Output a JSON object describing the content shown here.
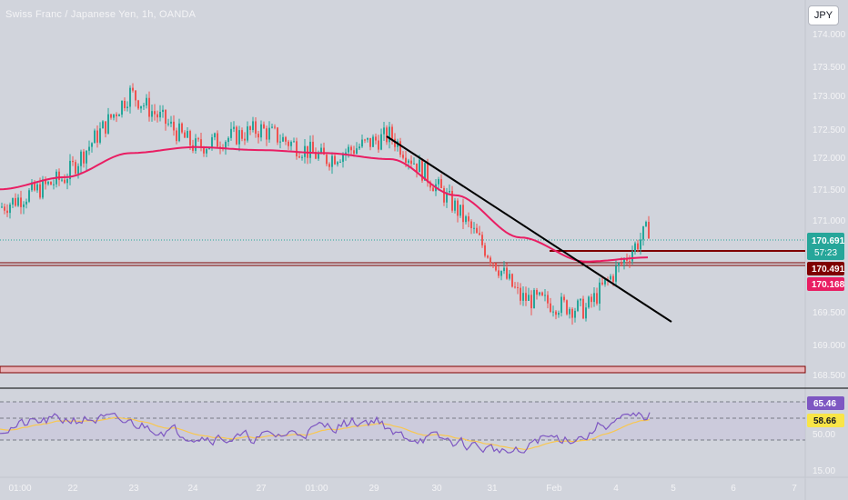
{
  "header": {
    "symbol_title": "Swiss Franc / Japanese Yen, 1h, OANDA",
    "currency_button": "JPY"
  },
  "colors": {
    "background": "#d1d4dc",
    "bull": "#26a69a",
    "bear": "#ef5350",
    "ma": "#e91e63",
    "trendline": "#000000",
    "resistance": "#7f0000",
    "support_zone": "#e8b4b8",
    "rsi": "#7e57c2",
    "rsi_ma": "#f9c74f"
  },
  "price_axis": {
    "tick_labels": [
      "174.000",
      "173.500",
      "173.000",
      "172.500",
      "172.000",
      "171.500",
      "171.000",
      "169.500",
      "169.000",
      "168.500"
    ]
  },
  "time_axis": {
    "tick_labels": [
      "01:00",
      "22",
      "23",
      "24",
      "27",
      "01:00",
      "29",
      "30",
      "31",
      "Feb",
      "4",
      "5",
      "6",
      "7"
    ]
  },
  "price_tags": {
    "last_price": "170.691",
    "countdown": "57:23",
    "resistance_price": "170.491",
    "ma_price": "170.168"
  },
  "rsi_panel": {
    "rsi_value": "65.46",
    "rsi_ma_value": "58.66",
    "tick_labels": [
      "50.00",
      "15.00"
    ]
  },
  "chart_data": {
    "type": "line",
    "title": "",
    "x": [
      "01:00",
      "22",
      "23",
      "24",
      "27",
      "01:00",
      "29",
      "30",
      "31",
      "Feb",
      "4"
    ],
    "ylim": [
      168.3,
      174.2
    ],
    "series": [
      {
        "name": "",
        "values": [
          171.0,
          171.5,
          172.9,
          172.0,
          172.3,
          171.8,
          172.2,
          171.0,
          169.5,
          169.3,
          170.69
        ]
      }
    ],
    "ma_values": [
      171.3,
      171.5,
      171.9,
      172.0,
      171.95,
      171.9,
      171.8,
      171.2,
      170.5,
      170.1,
      170.17
    ],
    "levels": {
      "resistance": 170.491,
      "support_zone": [
        168.55,
        168.65
      ],
      "last_price": 170.691
    },
    "trendline": [
      [
        172.35,
        "29"
      ],
      [
        169.6,
        "5"
      ]
    ],
    "rsi": {
      "value": 65.46,
      "ma": 58.66,
      "upper_band": 70,
      "lower_band": 30
    }
  }
}
